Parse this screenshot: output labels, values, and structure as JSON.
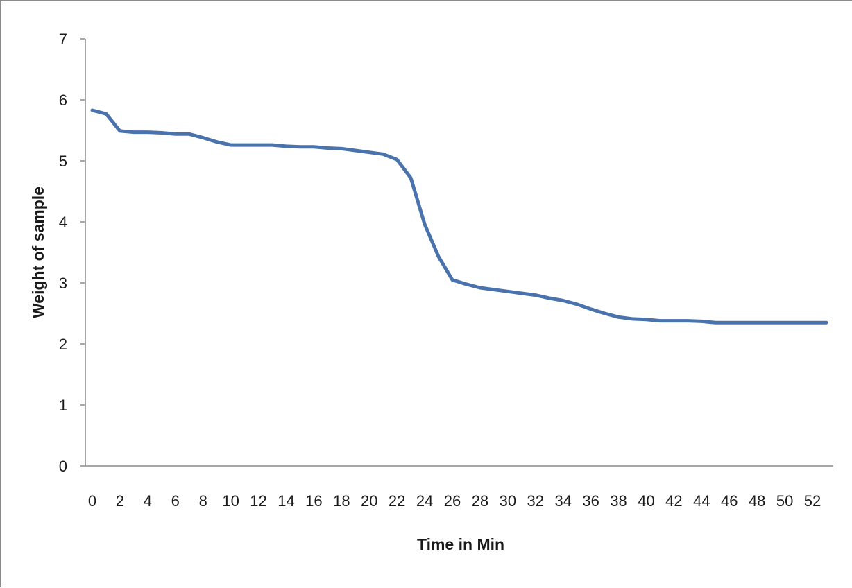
{
  "chart_data": {
    "type": "line",
    "title": "",
    "xlabel": "Time in Min",
    "ylabel": "Weight of sample",
    "xlim": [
      0,
      53
    ],
    "ylim": [
      0,
      7
    ],
    "x_ticks": [
      "0",
      "2",
      "4",
      "6",
      "8",
      "10",
      "12",
      "14",
      "16",
      "18",
      "20",
      "22",
      "24",
      "26",
      "28",
      "30",
      "32",
      "34",
      "36",
      "38",
      "40",
      "42",
      "44",
      "46",
      "48",
      "50",
      "52"
    ],
    "y_ticks": [
      "0",
      "1",
      "2",
      "3",
      "4",
      "5",
      "6",
      "7"
    ],
    "grid": false,
    "legend": "none",
    "line_color": "#4a72ad",
    "series": [
      {
        "x": [
          0,
          1,
          2,
          3,
          4,
          5,
          6,
          7,
          8,
          9,
          10,
          11,
          12,
          13,
          14,
          15,
          16,
          17,
          18,
          19,
          20,
          21,
          22,
          23,
          24,
          25,
          26,
          27,
          28,
          29,
          30,
          31,
          32,
          33,
          34,
          35,
          36,
          37,
          38,
          39,
          40,
          41,
          42,
          43,
          44,
          45,
          46,
          47,
          48,
          49,
          50,
          51,
          52,
          53
        ],
        "values": [
          5.83,
          5.77,
          5.49,
          5.47,
          5.47,
          5.46,
          5.44,
          5.44,
          5.38,
          5.31,
          5.26,
          5.26,
          5.26,
          5.26,
          5.24,
          5.23,
          5.23,
          5.21,
          5.2,
          5.17,
          5.14,
          5.11,
          5.02,
          4.72,
          3.96,
          3.43,
          3.05,
          2.98,
          2.92,
          2.89,
          2.86,
          2.83,
          2.8,
          2.75,
          2.71,
          2.65,
          2.57,
          2.5,
          2.44,
          2.41,
          2.4,
          2.38,
          2.38,
          2.38,
          2.37,
          2.35,
          2.35,
          2.35,
          2.35,
          2.35,
          2.35,
          2.35,
          2.35,
          2.35
        ]
      }
    ]
  }
}
